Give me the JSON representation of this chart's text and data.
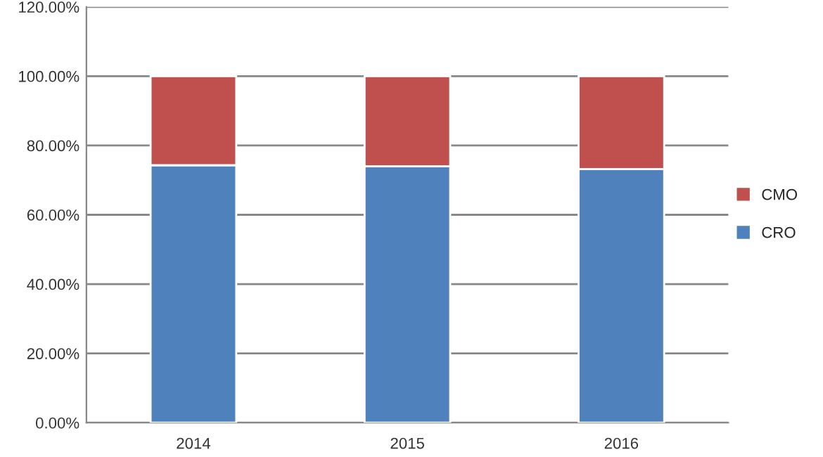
{
  "chart_data": {
    "type": "bar",
    "stacked": true,
    "categories": [
      "2014",
      "2015",
      "2016"
    ],
    "series": [
      {
        "name": "CRO",
        "color": "#4f81bd",
        "values": [
          74.3,
          74.0,
          73.2
        ]
      },
      {
        "name": "CMO",
        "color": "#c0504d",
        "values": [
          25.7,
          26.0,
          26.8
        ]
      }
    ],
    "ylim": [
      0,
      120
    ],
    "yticks": [
      {
        "value": 0,
        "label": "0.00%"
      },
      {
        "value": 20,
        "label": "20.00%"
      },
      {
        "value": 40,
        "label": "40.00%"
      },
      {
        "value": 60,
        "label": "60.00%"
      },
      {
        "value": 80,
        "label": "80.00%"
      },
      {
        "value": 100,
        "label": "100.00%"
      },
      {
        "value": 120,
        "label": "120.00%"
      }
    ],
    "grid": "y",
    "legend": "right"
  }
}
